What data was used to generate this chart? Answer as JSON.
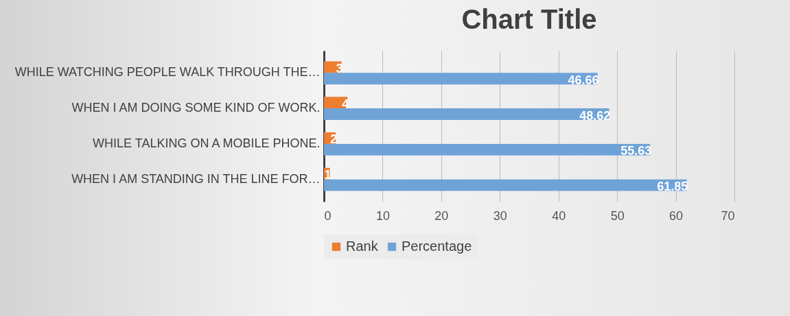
{
  "chart_data": {
    "type": "bar",
    "orientation": "horizontal",
    "title": "Chart Title",
    "categories": [
      "WHILE WATCHING PEOPLE WALK THROUGH THE…",
      "WHEN I AM DOING SOME KIND OF WORK.",
      "WHILE TALKING ON A MOBILE PHONE.",
      "WHEN I AM STANDING IN THE LINE FOR…"
    ],
    "series": [
      {
        "name": "Rank",
        "color": "#ed7d31",
        "values": [
          3,
          4,
          2,
          1
        ]
      },
      {
        "name": "Percentage",
        "color": "#6fa3d8",
        "values": [
          46.66,
          48.62,
          55.63,
          61.85
        ]
      }
    ],
    "xlim": [
      0,
      70
    ],
    "xticks": [
      0,
      10,
      20,
      30,
      40,
      50,
      60,
      70
    ],
    "grid": "x",
    "legend": "bottom",
    "data_labels": true
  }
}
